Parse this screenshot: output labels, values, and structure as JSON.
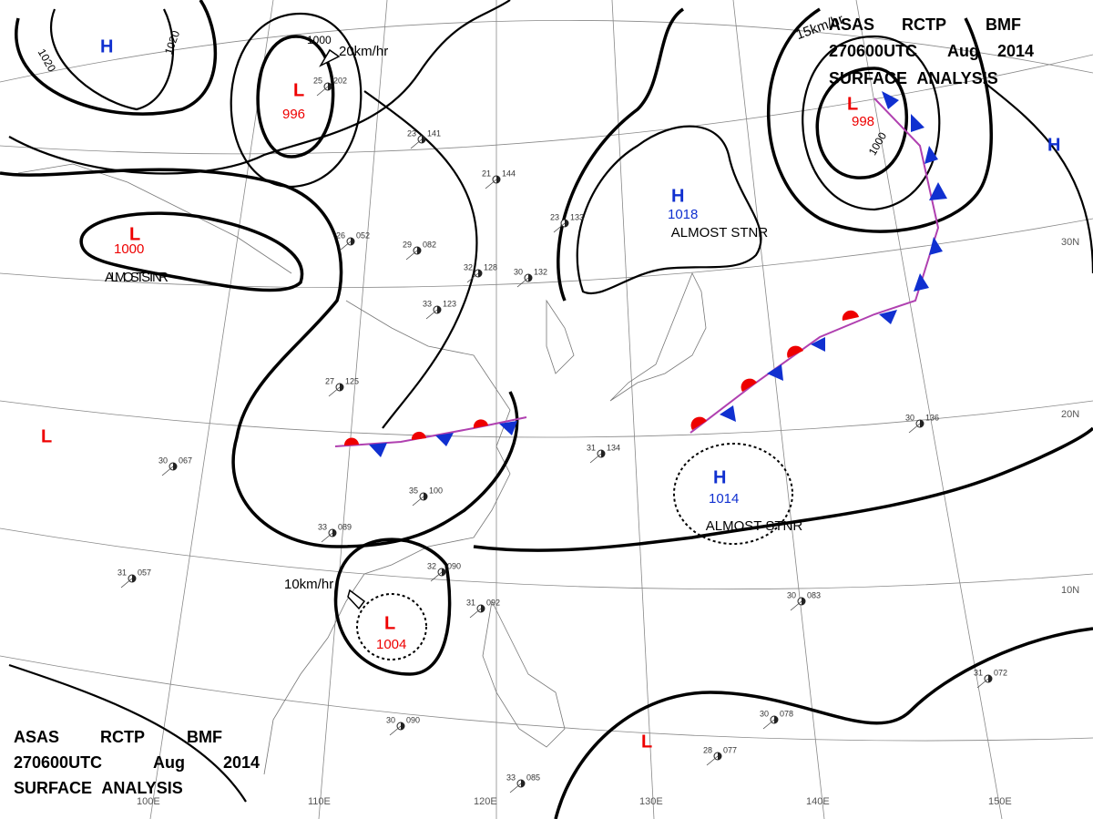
{
  "header": {
    "agency": "ASAS",
    "station": "RCTP",
    "office": "BMF",
    "time": "270600UTC",
    "month": "Aug",
    "year": "2014",
    "title": "SURFACE ANALYSIS"
  },
  "pressure_centers": [
    {
      "type": "L",
      "value": "996"
    },
    {
      "type": "L",
      "value": "1000",
      "note": "ALMOST STNR"
    },
    {
      "type": "H"
    },
    {
      "type": "L",
      "value": "998"
    },
    {
      "type": "H",
      "value": "1018",
      "note": "ALMOST STNR"
    },
    {
      "type": "H"
    },
    {
      "type": "H",
      "value": "1014",
      "note": "ALMOST STNR"
    },
    {
      "type": "L",
      "value": "1004"
    },
    {
      "type": "L"
    },
    {
      "type": "L"
    }
  ],
  "isobar_labels": [
    "1020",
    "1020",
    "1000",
    "1000"
  ],
  "motion_labels": [
    "20km/hr",
    "15km/hr",
    "10km/hr"
  ],
  "latitudes": [
    "30N",
    "20N",
    "10N"
  ],
  "longitudes": [
    "100E",
    "110E",
    "120E",
    "130E",
    "140E",
    "150E"
  ],
  "stations": [
    {
      "temp": "25",
      "pressure": "202"
    },
    {
      "temp": "23",
      "pressure": "141"
    },
    {
      "temp": "21",
      "pressure": "144"
    },
    {
      "temp": "23",
      "pressure": "133"
    },
    {
      "temp": "26",
      "pressure": "052"
    },
    {
      "temp": "29",
      "pressure": "082"
    },
    {
      "temp": "32",
      "pressure": "128"
    },
    {
      "temp": "30",
      "pressure": "132"
    },
    {
      "temp": "33",
      "pressure": "123"
    },
    {
      "temp": "27",
      "pressure": "125"
    },
    {
      "temp": "30",
      "pressure": "067"
    },
    {
      "temp": "31",
      "pressure": "057"
    },
    {
      "temp": "35",
      "pressure": "100"
    },
    {
      "temp": "33",
      "pressure": "089"
    },
    {
      "temp": "32",
      "pressure": "090"
    },
    {
      "temp": "31",
      "pressure": "134"
    },
    {
      "temp": "30",
      "pressure": "136"
    },
    {
      "temp": "30",
      "pressure": "083"
    },
    {
      "temp": "31",
      "pressure": "072"
    },
    {
      "temp": "30",
      "pressure": "078"
    },
    {
      "temp": "28",
      "pressure": "077"
    },
    {
      "temp": "33",
      "pressure": "085"
    },
    {
      "temp": "31",
      "pressure": "092"
    },
    {
      "temp": "30",
      "pressure": "090"
    }
  ]
}
